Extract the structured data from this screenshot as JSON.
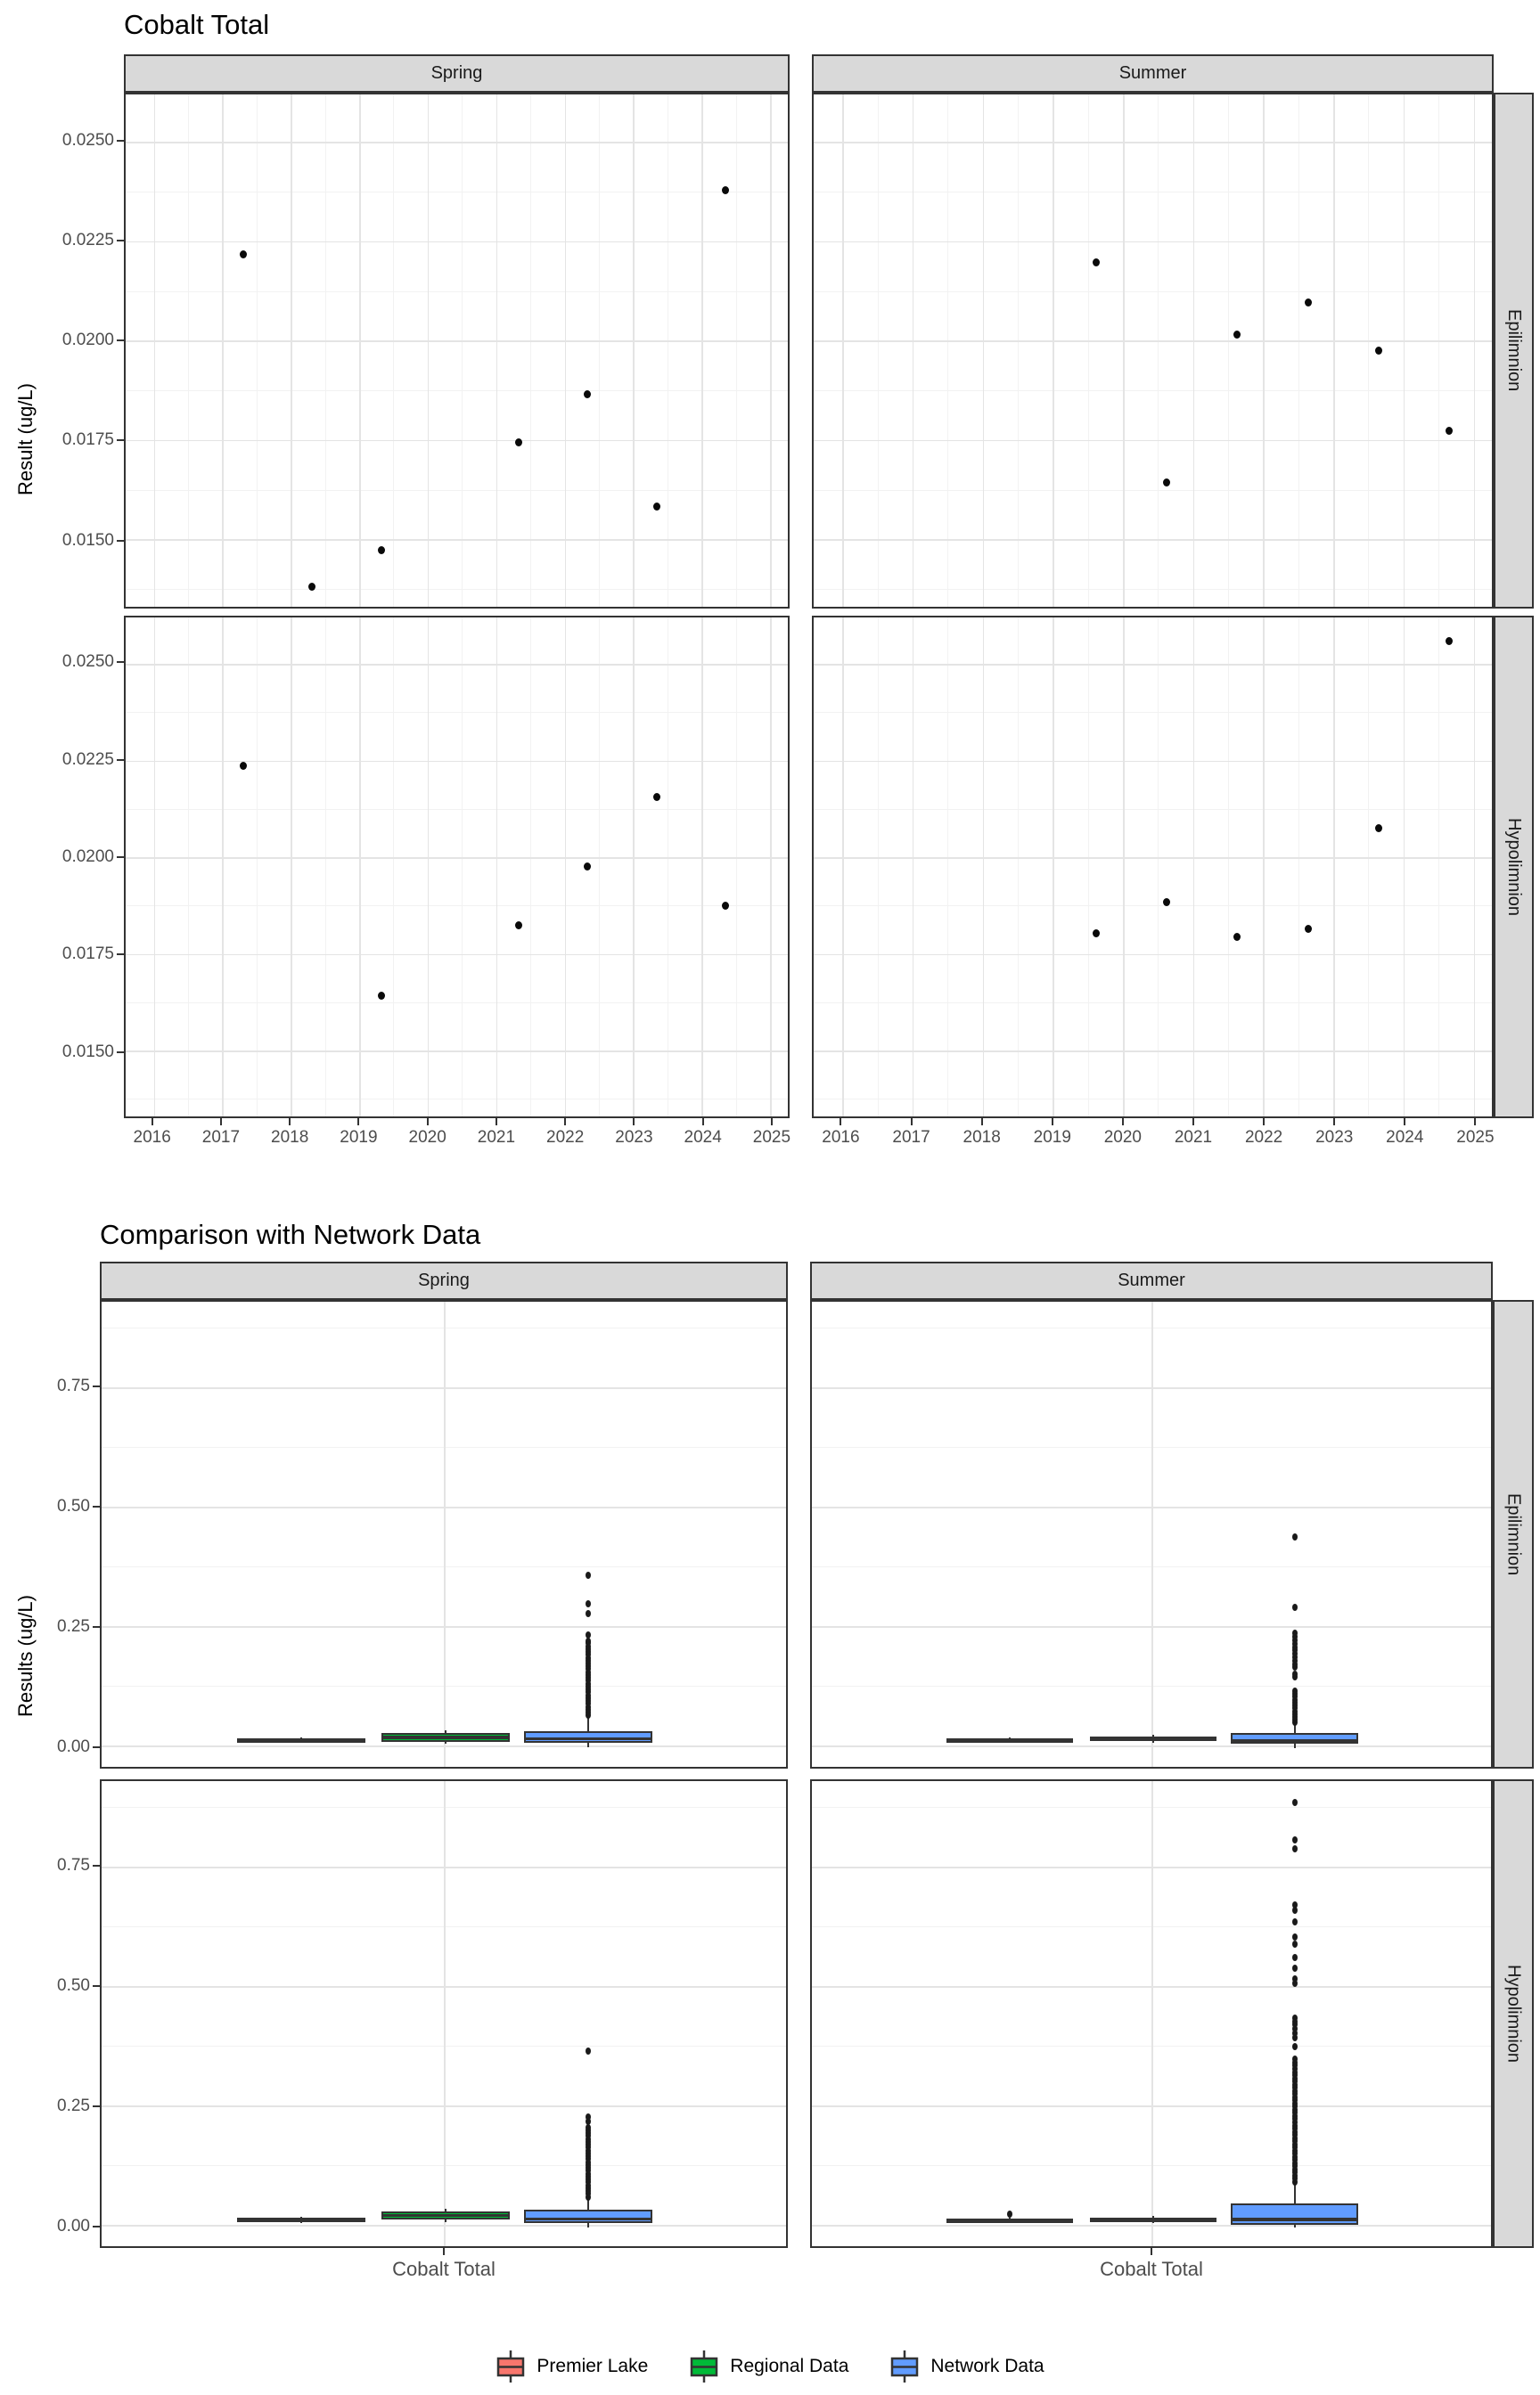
{
  "colors": {
    "premier_lake": "#F8766D",
    "regional_data": "#00BA38",
    "network_data": "#619CFF",
    "box_outline": "#333333",
    "strip_background": "#D9D9D9",
    "grid_major": "#E4E4E4",
    "grid_minor": "#F2F2F2",
    "tick_text": "#4d4d4d",
    "point": "#0a0a0a"
  },
  "chart_data": [
    {
      "type": "scatter",
      "title": "Cobalt Total",
      "ylabel": "Result (ug/L)",
      "col_facets": [
        "Spring",
        "Summer"
      ],
      "row_facets": [
        "Epilimnion",
        "Hypolimnion"
      ],
      "x_ticks": [
        2016,
        2017,
        2018,
        2019,
        2020,
        2021,
        2022,
        2023,
        2024,
        2025
      ],
      "y_ticks": [
        0.025,
        0.0225,
        0.02,
        0.0175,
        0.015
      ],
      "y_tick_labels": [
        "0.0250",
        "0.0225",
        "0.0200",
        "0.0175",
        "0.0150"
      ],
      "xlim": [
        2015.59,
        2025.26
      ],
      "ylim": [
        0.0133,
        0.0262
      ],
      "grid": "major+minor",
      "series": {
        "Spring|Epilimnion": [
          {
            "x": 2017.3,
            "y": 0.0222
          },
          {
            "x": 2018.3,
            "y": 0.0139
          },
          {
            "x": 2019.3,
            "y": 0.0148
          },
          {
            "x": 2021.3,
            "y": 0.0175
          },
          {
            "x": 2022.3,
            "y": 0.0187
          },
          {
            "x": 2023.3,
            "y": 0.0159
          },
          {
            "x": 2024.3,
            "y": 0.0238
          }
        ],
        "Summer|Epilimnion": [
          {
            "x": 2019.6,
            "y": 0.022
          },
          {
            "x": 2020.6,
            "y": 0.0165
          },
          {
            "x": 2021.6,
            "y": 0.0202
          },
          {
            "x": 2022.6,
            "y": 0.021
          },
          {
            "x": 2023.6,
            "y": 0.0198
          },
          {
            "x": 2024.6,
            "y": 0.0178
          }
        ],
        "Spring|Hypolimnion": [
          {
            "x": 2017.3,
            "y": 0.0224
          },
          {
            "x": 2019.3,
            "y": 0.0165
          },
          {
            "x": 2021.3,
            "y": 0.0183
          },
          {
            "x": 2022.3,
            "y": 0.0198
          },
          {
            "x": 2023.3,
            "y": 0.0216
          },
          {
            "x": 2024.3,
            "y": 0.0188
          }
        ],
        "Summer|Hypolimnion": [
          {
            "x": 2019.6,
            "y": 0.0181
          },
          {
            "x": 2020.6,
            "y": 0.0189
          },
          {
            "x": 2021.6,
            "y": 0.018
          },
          {
            "x": 2022.6,
            "y": 0.0182
          },
          {
            "x": 2023.6,
            "y": 0.0208
          },
          {
            "x": 2024.6,
            "y": 0.0256
          }
        ]
      }
    },
    {
      "type": "boxplot",
      "title": "Comparison with Network Data",
      "ylabel": "Results (ug/L)",
      "xlabel": "Cobalt Total",
      "x_categories": [
        "Cobalt Total"
      ],
      "col_facets": [
        "Spring",
        "Summer"
      ],
      "row_facets": [
        "Epilimnion",
        "Hypolimnion"
      ],
      "y_ticks": [
        0.0,
        0.25,
        0.5,
        0.75
      ],
      "y_tick_labels": [
        "0.00",
        "0.25",
        "0.50",
        "0.75"
      ],
      "ylim": [
        -0.044,
        0.929
      ],
      "legend_position": "bottom",
      "legend": [
        {
          "label": "Premier Lake",
          "color": "#F8766D"
        },
        {
          "label": "Regional Data",
          "color": "#00BA38"
        },
        {
          "label": "Network Data",
          "color": "#619CFF"
        }
      ],
      "panels": {
        "Spring|Epilimnion": [
          {
            "group": "Premier Lake",
            "q1": 0.015,
            "median": 0.018,
            "q3": 0.022,
            "whisker_low": 0.013,
            "whisker_high": 0.024,
            "outliers": []
          },
          {
            "group": "Regional Data",
            "q1": 0.016,
            "median": 0.024,
            "q3": 0.033,
            "whisker_low": 0.011,
            "whisker_high": 0.039,
            "outliers": []
          },
          {
            "group": "Network Data",
            "q1": 0.014,
            "median": 0.022,
            "q3": 0.037,
            "whisker_low": 0.004,
            "whisker_high": 0.067,
            "outliers": [
              0.07,
              0.076,
              0.082,
              0.088,
              0.094,
              0.1,
              0.106,
              0.112,
              0.118,
              0.124,
              0.13,
              0.136,
              0.142,
              0.148,
              0.154,
              0.16,
              0.166,
              0.172,
              0.178,
              0.184,
              0.19,
              0.196,
              0.202,
              0.208,
              0.214,
              0.22,
              0.225,
              0.237,
              0.282,
              0.302,
              0.362
            ]
          }
        ],
        "Summer|Epilimnion": [
          {
            "group": "Premier Lake",
            "q1": 0.016,
            "median": 0.019,
            "q3": 0.022,
            "whisker_low": 0.014,
            "whisker_high": 0.024,
            "outliers": []
          },
          {
            "group": "Regional Data",
            "q1": 0.017,
            "median": 0.021,
            "q3": 0.026,
            "whisker_low": 0.013,
            "whisker_high": 0.03,
            "outliers": []
          },
          {
            "group": "Network Data",
            "q1": 0.012,
            "median": 0.018,
            "q3": 0.033,
            "whisker_low": 0.003,
            "whisker_high": 0.052,
            "outliers": [
              0.055,
              0.061,
              0.067,
              0.073,
              0.079,
              0.085,
              0.091,
              0.097,
              0.103,
              0.109,
              0.115,
              0.121,
              0.15,
              0.156,
              0.17,
              0.177,
              0.184,
              0.191,
              0.198,
              0.205,
              0.212,
              0.219,
              0.226,
              0.233,
              0.24,
              0.295,
              0.44
            ]
          }
        ],
        "Spring|Hypolimnion": [
          {
            "group": "Premier Lake",
            "q1": 0.014,
            "median": 0.018,
            "q3": 0.023,
            "whisker_low": 0.012,
            "whisker_high": 0.025,
            "outliers": []
          },
          {
            "group": "Regional Data",
            "q1": 0.019,
            "median": 0.027,
            "q3": 0.036,
            "whisker_low": 0.013,
            "whisker_high": 0.042,
            "outliers": []
          },
          {
            "group": "Network Data",
            "q1": 0.012,
            "median": 0.02,
            "q3": 0.04,
            "whisker_low": 0.003,
            "whisker_high": 0.064,
            "outliers": [
              0.066,
              0.072,
              0.078,
              0.084,
              0.09,
              0.096,
              0.102,
              0.108,
              0.114,
              0.12,
              0.126,
              0.132,
              0.138,
              0.144,
              0.15,
              0.156,
              0.162,
              0.168,
              0.174,
              0.18,
              0.186,
              0.192,
              0.198,
              0.204,
              0.21,
              0.222,
              0.231,
              0.368
            ]
          }
        ],
        "Summer|Hypolimnion": [
          {
            "group": "Premier Lake",
            "q1": 0.0126,
            "median": 0.017,
            "q3": 0.021,
            "whisker_low": 0.011,
            "whisker_high": 0.023,
            "outliers": [
              0.03
            ]
          },
          {
            "group": "Regional Data",
            "q1": 0.014,
            "median": 0.018,
            "q3": 0.023,
            "whisker_low": 0.011,
            "whisker_high": 0.026,
            "outliers": []
          },
          {
            "group": "Network Data",
            "q1": 0.008,
            "median": 0.019,
            "q3": 0.053,
            "whisker_low": 0.002,
            "whisker_high": 0.093,
            "outliers": [
              0.097,
              0.104,
              0.11,
              0.117,
              0.123,
              0.13,
              0.136,
              0.143,
              0.149,
              0.156,
              0.162,
              0.169,
              0.175,
              0.182,
              0.188,
              0.195,
              0.201,
              0.208,
              0.214,
              0.221,
              0.227,
              0.234,
              0.24,
              0.247,
              0.253,
              0.26,
              0.266,
              0.273,
              0.279,
              0.286,
              0.292,
              0.299,
              0.305,
              0.312,
              0.318,
              0.325,
              0.331,
              0.338,
              0.344,
              0.352,
              0.377,
              0.396,
              0.405,
              0.415,
              0.424,
              0.43,
              0.437,
              0.509,
              0.518,
              0.54,
              0.562,
              0.59,
              0.606,
              0.637,
              0.66,
              0.672,
              0.788,
              0.807,
              0.885
            ]
          }
        ]
      }
    }
  ]
}
